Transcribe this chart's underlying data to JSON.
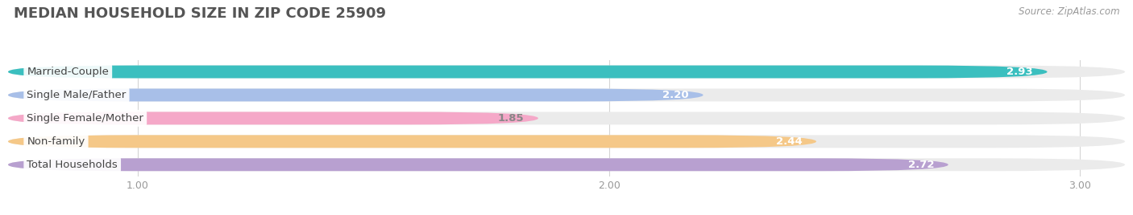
{
  "title": "MEDIAN HOUSEHOLD SIZE IN ZIP CODE 25909",
  "source": "Source: ZipAtlas.com",
  "categories": [
    "Married-Couple",
    "Single Male/Father",
    "Single Female/Mother",
    "Non-family",
    "Total Households"
  ],
  "values": [
    2.93,
    2.2,
    1.85,
    2.44,
    2.72
  ],
  "bar_colors": [
    "#3bbfbf",
    "#a8bfe8",
    "#f5a8c8",
    "#f5c888",
    "#b8a0d0"
  ],
  "bar_bg_colors": [
    "#ebebeb",
    "#ebebeb",
    "#ebebeb",
    "#ebebeb",
    "#ebebeb"
  ],
  "xlim_min": 0.72,
  "xlim_max": 3.1,
  "xticks": [
    1.0,
    2.0,
    3.0
  ],
  "xtick_labels": [
    "1.00",
    "2.00",
    "3.00"
  ],
  "value_colors": [
    "#ffffff",
    "#ffffff",
    "#888888",
    "#ffffff",
    "#ffffff"
  ],
  "label_fontsize": 9.5,
  "value_fontsize": 9.5,
  "title_fontsize": 13,
  "source_fontsize": 8.5,
  "bar_height": 0.55,
  "bar_gap": 0.45
}
